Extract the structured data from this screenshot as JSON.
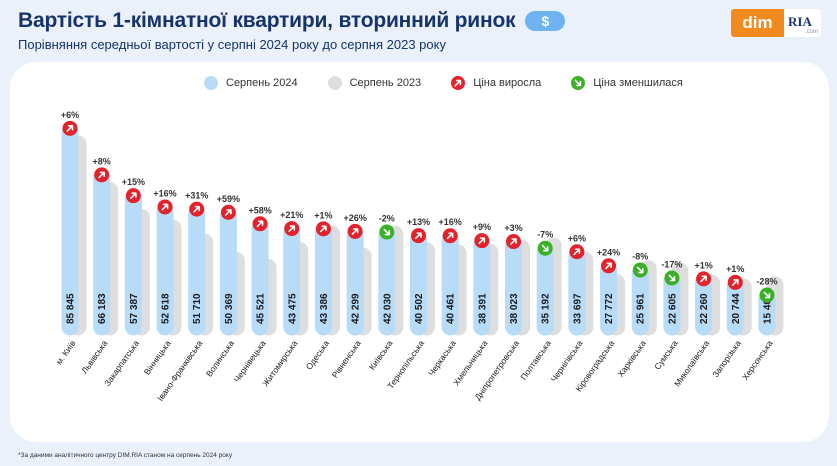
{
  "header": {
    "title": "Вартість 1-кімнатної квартири, вторинний ринок",
    "currency_symbol": "$",
    "subtitle": "Порівняння середньої вартості у серпні 2024 року до серпня 2023 року"
  },
  "logo": {
    "dim": "dim",
    "ria": "RIA",
    "ria_suffix": ".com"
  },
  "legend": {
    "current": "Серпень 2024",
    "previous": "Серпень 2023",
    "up": "Ціна виросла",
    "down": "Ціна зменшилася"
  },
  "colors": {
    "title": "#16336b",
    "current_bar": "#b8dbf8",
    "previous_bar": "#dedede",
    "up_icon": "#e3232c",
    "down_icon": "#3caf28",
    "logo_orange": "#f28b1f",
    "currency_pill": "#6fb2f0"
  },
  "chart_data": {
    "type": "bar",
    "title": "Вартість 1-кімнатної квартири, вторинний ринок",
    "subtitle": "Порівняння середньої вартості у серпні 2024 року до серпня 2023 року",
    "unit": "$",
    "categories": [
      "м. Київ",
      "Львівська",
      "Закарпатська",
      "Вінницька",
      "Івано-Франківська",
      "Волинська",
      "Чернівецька",
      "Житомирська",
      "Одеська",
      "Рівненська",
      "Київська",
      "Тернопільська",
      "Черкаська",
      "Хмельницька",
      "Дніпропетровська",
      "Полтавська",
      "Чернігівська",
      "Кіровоградська",
      "Харківська",
      "Сумська",
      "Миколаївська",
      "Запорізька",
      "Херсонська"
    ],
    "series": [
      {
        "name": "Серпень 2024",
        "values": [
          85845,
          66183,
          57387,
          52618,
          51710,
          50369,
          45521,
          43475,
          43386,
          42299,
          42030,
          40502,
          40461,
          38391,
          38023,
          35192,
          33697,
          27772,
          25961,
          22605,
          22260,
          20744,
          15400
        ],
        "labels": [
          "85 845",
          "66 183",
          "57 387",
          "52 618",
          "51 710",
          "50 369",
          "45 521",
          "43 475",
          "43 386",
          "42 299",
          "42 030",
          "40 502",
          "40 461",
          "38 391",
          "38 023",
          "35 192",
          "33 697",
          "27 772",
          "25 961",
          "22 605",
          "22 260",
          "20 744",
          "15 400"
        ]
      },
      {
        "name": "Серпень 2023",
        "values": [
          80986,
          61281,
          49902,
          45360,
          39473,
          31679,
          28811,
          35930,
          42956,
          33571,
          42888,
          35843,
          34880,
          35221,
          36916,
          37841,
          31790,
          22397,
          28219,
          27235,
          22040,
          20539,
          21389
        ]
      }
    ],
    "changes": [
      "+6%",
      "+8%",
      "+15%",
      "+16%",
      "+31%",
      "+59%",
      "+58%",
      "+21%",
      "+1%",
      "+26%",
      "-2%",
      "+13%",
      "+16%",
      "+9%",
      "+3%",
      "-7%",
      "+6%",
      "+24%",
      "-8%",
      "-17%",
      "+1%",
      "+1%",
      "-28%"
    ],
    "directions": [
      "up",
      "up",
      "up",
      "up",
      "up",
      "up",
      "up",
      "up",
      "up",
      "up",
      "down",
      "up",
      "up",
      "up",
      "up",
      "down",
      "up",
      "up",
      "down",
      "down",
      "up",
      "up",
      "down"
    ],
    "ylim": [
      0,
      90000
    ],
    "grid": false,
    "legend_position": "top"
  },
  "footnote": "*За даними аналітичного центру DIM.RIA станом на серпень 2024 року"
}
